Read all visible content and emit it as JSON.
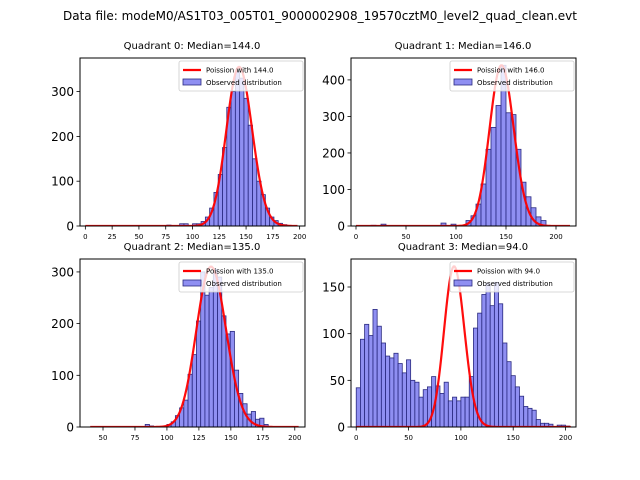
{
  "figure": {
    "suptitle": "Data file: modeM0/AS1T03_005T01_9000002908_19570cztM0_level2_quad_clean.evt",
    "colors": {
      "bar_fill": "#7b7bf0",
      "bar_edge": "#2a2a80",
      "line": "#ff0000"
    }
  },
  "chart_data": [
    {
      "type": "bar",
      "title": "Quadrant 0: Median=144.0",
      "xlabel": "",
      "ylabel": "",
      "xlim": [
        -5,
        205
      ],
      "ylim": [
        0,
        375
      ],
      "xticks": [
        0,
        25,
        50,
        75,
        100,
        125,
        150,
        175,
        200
      ],
      "yticks": [
        0,
        100,
        200,
        300
      ],
      "legend": {
        "placement": "top-right",
        "entries": [
          "Poission with 144.0",
          "Observed distribution"
        ]
      },
      "histogram": {
        "bin_width": 4,
        "bin_starts": [
          76,
          88,
          92,
          100,
          104,
          108,
          112,
          116,
          120,
          124,
          128,
          132,
          136,
          140,
          144,
          148,
          152,
          156,
          160,
          164,
          168,
          172,
          176,
          180,
          184,
          188
        ],
        "counts": [
          2,
          5,
          5,
          5,
          5,
          10,
          20,
          40,
          75,
          115,
          175,
          265,
          300,
          345,
          330,
          285,
          225,
          150,
          100,
          70,
          40,
          20,
          12,
          6,
          3,
          1
        ]
      },
      "poisson": {
        "mean": 144.0,
        "peak": 355,
        "x_range": [
          0,
          198
        ]
      }
    },
    {
      "type": "bar",
      "title": "Quadrant 1: Median=146.0",
      "xlabel": "",
      "ylabel": "",
      "xlim": [
        -5,
        220
      ],
      "ylim": [
        0,
        460
      ],
      "xticks": [
        0,
        50,
        100,
        150,
        200
      ],
      "yticks": [
        0,
        100,
        200,
        300,
        400
      ],
      "legend": {
        "placement": "top-right",
        "entries": [
          "Poission with 146.0",
          "Observed distribution"
        ]
      },
      "histogram": {
        "bin_width": 5,
        "bin_starts": [
          15,
          25,
          85,
          95,
          110,
          115,
          120,
          125,
          130,
          135,
          140,
          145,
          150,
          155,
          160,
          165,
          170,
          175,
          180,
          185
        ],
        "counts": [
          2,
          5,
          8,
          5,
          15,
          28,
          60,
          115,
          210,
          270,
          330,
          440,
          310,
          305,
          210,
          120,
          80,
          50,
          25,
          15
        ]
      },
      "poisson": {
        "mean": 146.0,
        "peak": 440,
        "x_range": [
          0,
          214
        ]
      }
    },
    {
      "type": "bar",
      "title": "Quadrant 2: Median=135.0",
      "xlabel": "",
      "ylabel": "",
      "xlim": [
        32,
        208
      ],
      "ylim": [
        0,
        325
      ],
      "xticks": [
        50,
        75,
        100,
        125,
        150,
        175,
        200
      ],
      "yticks": [
        0,
        100,
        200,
        300
      ],
      "legend": {
        "placement": "top-right",
        "entries": [
          "Poission with 135.0",
          "Observed distribution"
        ]
      },
      "histogram": {
        "bin_width": 3.3,
        "bin_starts": [
          83,
          86.3,
          100,
          103.3,
          106.6,
          109.9,
          113.2,
          116.5,
          119.8,
          123.1,
          126.4,
          129.7,
          133,
          136.3,
          139.6,
          142.9,
          146.2,
          149.5,
          152.8,
          156.1,
          159.4,
          162.7,
          166,
          169.3,
          172.6,
          175.9
        ],
        "counts": [
          5,
          2,
          5,
          10,
          22,
          37,
          52,
          102,
          140,
          205,
          300,
          255,
          270,
          305,
          290,
          215,
          180,
          185,
          110,
          65,
          45,
          25,
          30,
          15,
          17,
          5
        ]
      },
      "poisson": {
        "mean": 135.0,
        "peak": 310,
        "x_range": [
          40,
          203
        ]
      }
    },
    {
      "type": "bar",
      "title": "Quadrant 3: Median=94.0",
      "xlabel": "",
      "ylabel": "",
      "xlim": [
        -5,
        210
      ],
      "ylim": [
        0,
        180
      ],
      "xticks": [
        0,
        50,
        100,
        150,
        200
      ],
      "yticks": [
        0,
        50,
        100,
        150
      ],
      "legend": {
        "placement": "top-right",
        "entries": [
          "Poission with 94.0",
          "Observed distribution"
        ]
      },
      "histogram": {
        "bin_width": 4,
        "bin_starts": [
          0,
          4,
          8,
          12,
          16,
          20,
          24,
          28,
          32,
          36,
          40,
          44,
          48,
          52,
          56,
          60,
          64,
          68,
          72,
          76,
          80,
          84,
          88,
          92,
          96,
          100,
          104,
          108,
          112,
          116,
          120,
          124,
          128,
          132,
          136,
          140,
          144,
          148,
          152,
          156,
          160,
          164,
          168,
          172,
          176,
          180,
          184,
          192,
          196,
          200
        ],
        "counts": [
          42,
          94,
          110,
          98,
          126,
          108,
          90,
          76,
          74,
          79,
          68,
          58,
          72,
          50,
          48,
          32,
          40,
          43,
          54,
          44,
          36,
          48,
          28,
          32,
          28,
          32,
          32,
          54,
          106,
          122,
          142,
          154,
          130,
          155,
          132,
          90,
          70,
          55,
          43,
          33,
          22,
          20,
          18,
          8,
          4,
          4,
          3,
          2,
          2,
          1
        ]
      },
      "poisson": {
        "mean": 94.0,
        "peak": 172,
        "x_range": [
          0,
          205
        ]
      }
    }
  ]
}
